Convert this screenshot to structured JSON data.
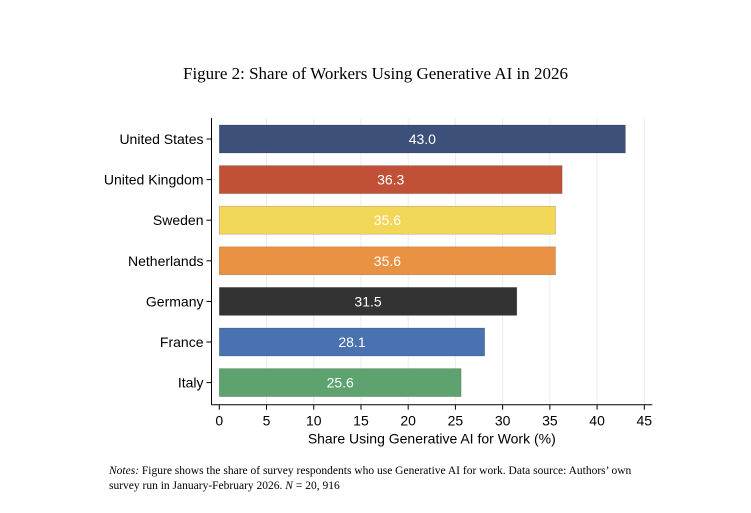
{
  "figure_title": "Figure 2: Share of Workers Using Generative AI in 2026",
  "notes": {
    "label": "Notes:",
    "text_1": "Figure shows the share of survey respondents who use Generative AI for work.  Data source: Authors’ own survey run in January-February 2026.",
    "n_label": "N",
    "n_text": " = 20, 916"
  },
  "chart_data": {
    "type": "bar",
    "orientation": "horizontal",
    "title": "Figure 2: Share of Workers Using Generative AI in 2026",
    "xlabel": "Share Using Generative AI for Work (%)",
    "ylabel": "",
    "categories": [
      "United States",
      "United Kingdom",
      "Sweden",
      "Netherlands",
      "Germany",
      "France",
      "Italy"
    ],
    "values": [
      43.0,
      36.3,
      35.6,
      35.6,
      31.5,
      28.1,
      25.6
    ],
    "data_labels": [
      "43.0",
      "36.3",
      "35.6",
      "35.6",
      "31.5",
      "28.1",
      "25.6"
    ],
    "colors": [
      "#3c5079",
      "#c05137",
      "#f3d758",
      "#e99244",
      "#333333",
      "#4a72b0",
      "#5da26f"
    ],
    "xlim": [
      0,
      45
    ],
    "xticks": [
      0,
      5,
      10,
      15,
      20,
      25,
      30,
      35,
      40,
      45
    ],
    "grid": true,
    "legend": "none"
  }
}
